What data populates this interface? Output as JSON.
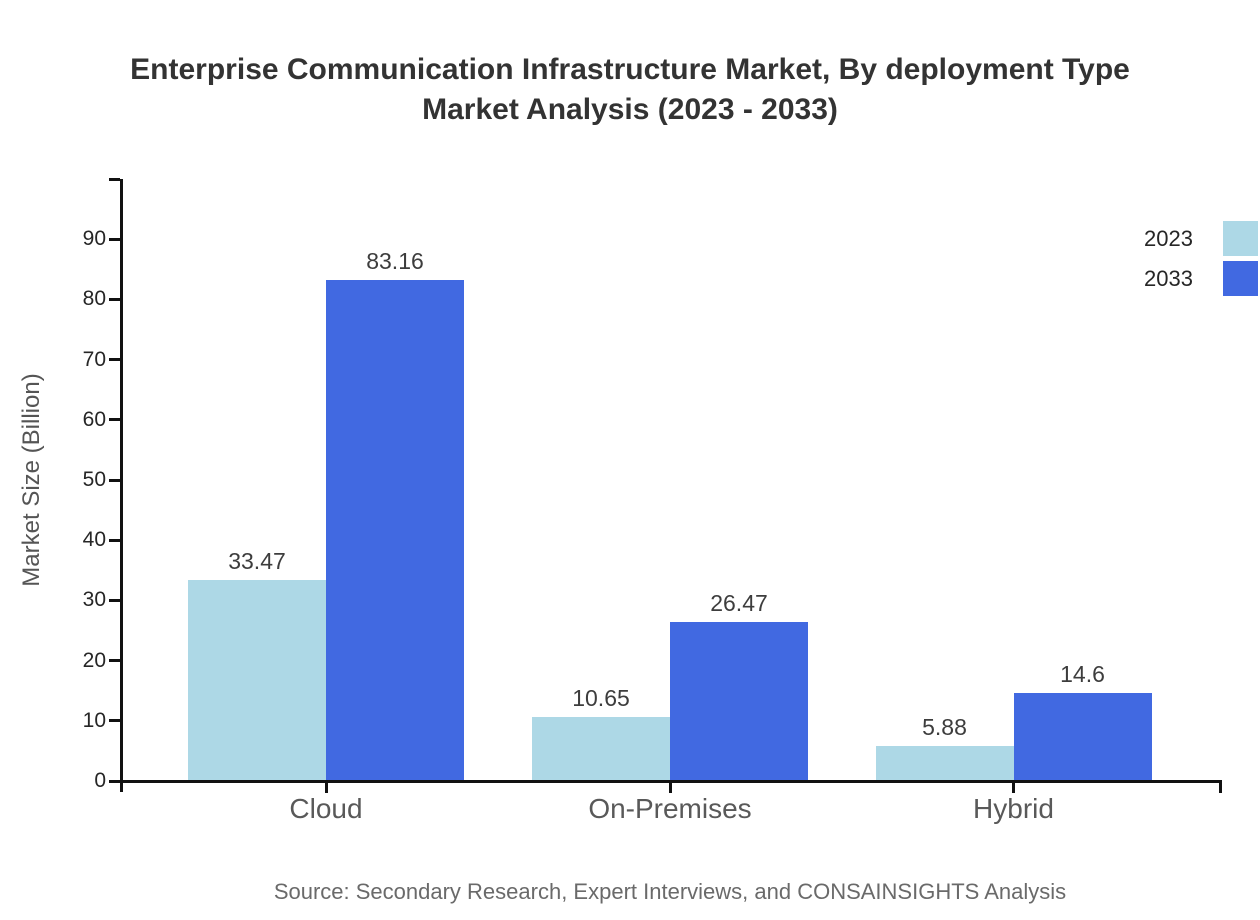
{
  "title": {
    "line1": "Enterprise Communication Infrastructure Market, By deployment Type",
    "line2": "Market Analysis (2023 - 2033)"
  },
  "source": "Source: Secondary Research, Expert Interviews, and CONSAINSIGHTS Analysis",
  "chart_data": {
    "type": "bar",
    "title": "Enterprise Communication Infrastructure Market, By deployment Type Market Analysis (2023 - 2033)",
    "categories": [
      "Cloud",
      "On-Premises",
      "Hybrid"
    ],
    "series": [
      {
        "name": "2023",
        "color": "#ADD8E6",
        "values": [
          33.47,
          10.65,
          5.88
        ]
      },
      {
        "name": "2033",
        "color": "#4169E1",
        "values": [
          83.16,
          26.47,
          14.6
        ]
      }
    ],
    "xlabel": "",
    "ylabel": "Market Size (Billion)",
    "yticks": [
      0,
      10,
      20,
      30,
      40,
      50,
      60,
      70,
      80,
      90
    ],
    "ylim": [
      0,
      100
    ],
    "grid": false,
    "legend_position": "top-right",
    "bar_value_labels": true,
    "axis_color": "#111111"
  }
}
